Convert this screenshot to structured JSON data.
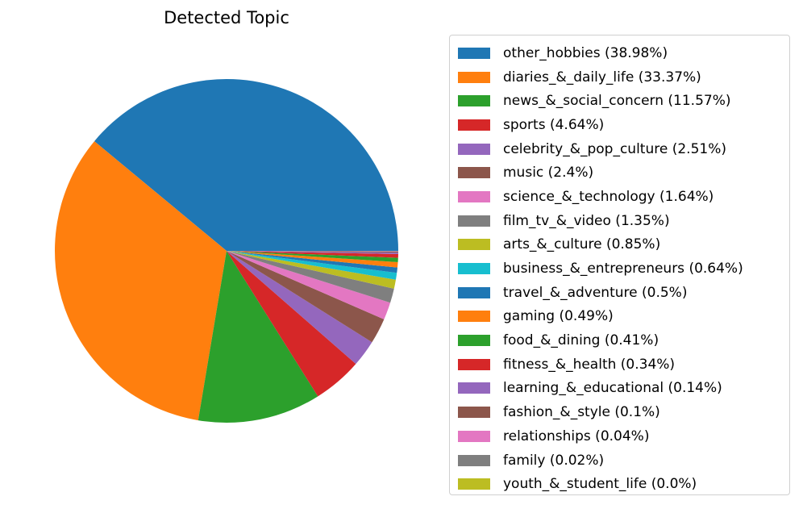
{
  "chart_data": {
    "type": "pie",
    "title": "Detected Topic",
    "legend_position": "right",
    "start_angle_deg": 0,
    "direction": "counterclockwise",
    "slices": [
      {
        "label": "other_hobbies (38.98%)",
        "value": 38.98,
        "color": "#1f77b4"
      },
      {
        "label": "diaries_&_daily_life (33.37%)",
        "value": 33.37,
        "color": "#ff7f0e"
      },
      {
        "label": "news_&_social_concern (11.57%)",
        "value": 11.57,
        "color": "#2ca02c"
      },
      {
        "label": "sports (4.64%)",
        "value": 4.64,
        "color": "#d62728"
      },
      {
        "label": "celebrity_&_pop_culture (2.51%)",
        "value": 2.51,
        "color": "#9467bd"
      },
      {
        "label": "music (2.4%)",
        "value": 2.4,
        "color": "#8c564b"
      },
      {
        "label": "science_&_technology (1.64%)",
        "value": 1.64,
        "color": "#e377c2"
      },
      {
        "label": "film_tv_&_video (1.35%)",
        "value": 1.35,
        "color": "#7f7f7f"
      },
      {
        "label": "arts_&_culture (0.85%)",
        "value": 0.85,
        "color": "#bcbd22"
      },
      {
        "label": "business_&_entrepreneurs (0.64%)",
        "value": 0.64,
        "color": "#17becf"
      },
      {
        "label": "travel_&_adventure (0.5%)",
        "value": 0.5,
        "color": "#1f77b4"
      },
      {
        "label": "gaming (0.49%)",
        "value": 0.49,
        "color": "#ff7f0e"
      },
      {
        "label": "food_&_dining (0.41%)",
        "value": 0.41,
        "color": "#2ca02c"
      },
      {
        "label": "fitness_&_health (0.34%)",
        "value": 0.34,
        "color": "#d62728"
      },
      {
        "label": "learning_&_educational (0.14%)",
        "value": 0.14,
        "color": "#9467bd"
      },
      {
        "label": "fashion_&_style (0.1%)",
        "value": 0.1,
        "color": "#8c564b"
      },
      {
        "label": "relationships (0.04%)",
        "value": 0.04,
        "color": "#e377c2"
      },
      {
        "label": "family (0.02%)",
        "value": 0.02,
        "color": "#7f7f7f"
      },
      {
        "label": "youth_&_student_life (0.0%)",
        "value": 0.0,
        "color": "#bcbd22"
      }
    ]
  }
}
